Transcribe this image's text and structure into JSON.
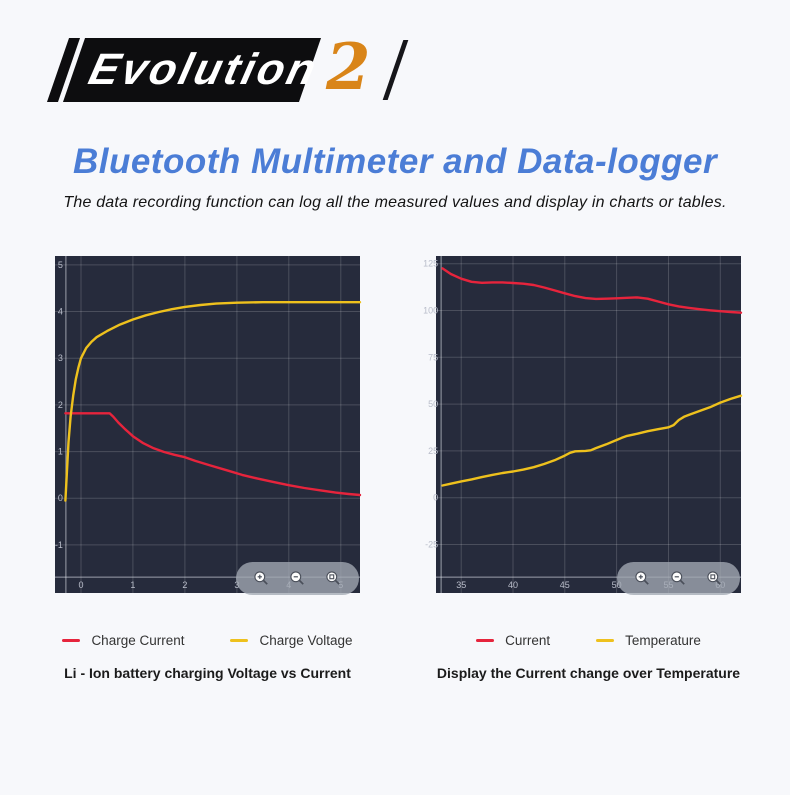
{
  "header": {
    "badge_text": "Evolution",
    "badge_number": "2"
  },
  "title": "Bluetooth Multimeter and Data-logger",
  "subtitle": "The data recording function can log all the measured values and display in charts or tables.",
  "colors": {
    "accent_blue": "#4b7dd6",
    "accent_orange": "#d98519",
    "chart_bg": "#262b3c",
    "series_red": "#e6243c",
    "series_yellow": "#eec11d"
  },
  "toolbar": {
    "icons": [
      "zoom-in-icon",
      "zoom-out-icon",
      "zoom-reset-icon"
    ]
  },
  "chart_data": [
    {
      "type": "line",
      "title": "Li - Ion battery charging Voltage vs Current",
      "x_range": [
        -0.5,
        5.37
      ],
      "y_range": [
        -2.03,
        5.19
      ],
      "y_axis_x": -0.29,
      "x_axis_y": -1.69,
      "x_ticks": {
        "values": [
          0,
          1,
          2,
          3,
          4,
          5
        ],
        "labels": [
          "0",
          "1",
          "2",
          "3",
          "4",
          "5"
        ]
      },
      "y_ticks": {
        "values": [
          5,
          4,
          3,
          2,
          1,
          0,
          -1
        ],
        "labels": [
          "5",
          "4",
          "3",
          "2",
          "1",
          "0",
          "-1"
        ]
      },
      "grid": true,
      "legend_position": "bottom",
      "series": [
        {
          "name": "Charge Current",
          "color": "#e6243c",
          "points": [
            [
              -0.3,
              1.82
            ],
            [
              0,
              1.82
            ],
            [
              0.55,
              1.82
            ],
            [
              0.62,
              1.75
            ],
            [
              0.72,
              1.62
            ],
            [
              0.85,
              1.48
            ],
            [
              1.0,
              1.33
            ],
            [
              1.2,
              1.18
            ],
            [
              1.4,
              1.07
            ],
            [
              1.6,
              0.99
            ],
            [
              1.8,
              0.93
            ],
            [
              2.0,
              0.88
            ],
            [
              2.2,
              0.8
            ],
            [
              2.5,
              0.7
            ],
            [
              2.8,
              0.6
            ],
            [
              3.1,
              0.5
            ],
            [
              3.4,
              0.42
            ],
            [
              3.7,
              0.35
            ],
            [
              4.0,
              0.28
            ],
            [
              4.3,
              0.22
            ],
            [
              4.6,
              0.17
            ],
            [
              4.9,
              0.12
            ],
            [
              5.15,
              0.09
            ],
            [
              5.37,
              0.07
            ]
          ]
        },
        {
          "name": "Charge Voltage",
          "color": "#eec11d",
          "points": [
            [
              -0.3,
              -0.05
            ],
            [
              -0.27,
              0.6
            ],
            [
              -0.24,
              1.2
            ],
            [
              -0.2,
              1.75
            ],
            [
              -0.15,
              2.2
            ],
            [
              -0.1,
              2.55
            ],
            [
              -0.05,
              2.8
            ],
            [
              0,
              3.0
            ],
            [
              0.1,
              3.22
            ],
            [
              0.2,
              3.35
            ],
            [
              0.3,
              3.45
            ],
            [
              0.5,
              3.58
            ],
            [
              0.75,
              3.72
            ],
            [
              1.0,
              3.83
            ],
            [
              1.25,
              3.92
            ],
            [
              1.5,
              3.99
            ],
            [
              1.75,
              4.05
            ],
            [
              2.0,
              4.1
            ],
            [
              2.3,
              4.14
            ],
            [
              2.6,
              4.17
            ],
            [
              3.0,
              4.19
            ],
            [
              3.5,
              4.2
            ],
            [
              4.0,
              4.2
            ],
            [
              4.5,
              4.2
            ],
            [
              5.0,
              4.2
            ],
            [
              5.37,
              4.2
            ]
          ]
        }
      ]
    },
    {
      "type": "line",
      "title": "Display the Current change over Temperature",
      "x_range": [
        32.57,
        62.0
      ],
      "y_range": [
        -50.9,
        129.1
      ],
      "y_axis_x": 33.06,
      "x_axis_y": -42.4,
      "x_ticks": {
        "values": [
          35,
          40,
          45,
          50,
          55,
          60
        ],
        "labels": [
          "35",
          "40",
          "45",
          "50",
          "55",
          "60"
        ]
      },
      "y_ticks": {
        "values": [
          125,
          100,
          75,
          50,
          25,
          0,
          -25
        ],
        "labels": [
          "125",
          "100",
          "75",
          "50",
          "25",
          "0",
          "-25"
        ]
      },
      "grid": true,
      "legend_position": "bottom",
      "series": [
        {
          "name": "Current",
          "color": "#e6243c",
          "points": [
            [
              33.2,
              122.5
            ],
            [
              34,
              119.5
            ],
            [
              35,
              117
            ],
            [
              36,
              115.3
            ],
            [
              37,
              114.8
            ],
            [
              38,
              115
            ],
            [
              39,
              115
            ],
            [
              40,
              114.7
            ],
            [
              41,
              114.3
            ],
            [
              42,
              113.6
            ],
            [
              43,
              112.3
            ],
            [
              44,
              110.7
            ],
            [
              45,
              109.2
            ],
            [
              46,
              107.7
            ],
            [
              47,
              106.6
            ],
            [
              48,
              106.2
            ],
            [
              49,
              106.3
            ],
            [
              50,
              106.5
            ],
            [
              51,
              106.8
            ],
            [
              52,
              107
            ],
            [
              53,
              106.3
            ],
            [
              54,
              104.8
            ],
            [
              55,
              103.3
            ],
            [
              56,
              102.2
            ],
            [
              57,
              101.4
            ],
            [
              58,
              100.7
            ],
            [
              59,
              100.1
            ],
            [
              60,
              99.6
            ],
            [
              61,
              99.2
            ],
            [
              62,
              98.8
            ]
          ]
        },
        {
          "name": "Temperature",
          "color": "#eec11d",
          "points": [
            [
              33.2,
              6.5
            ],
            [
              34,
              7.5
            ],
            [
              35,
              8.7
            ],
            [
              36,
              9.8
            ],
            [
              37,
              11
            ],
            [
              38,
              12.2
            ],
            [
              39,
              13.2
            ],
            [
              40,
              14
            ],
            [
              41,
              15
            ],
            [
              42,
              16.3
            ],
            [
              43,
              18
            ],
            [
              44,
              20
            ],
            [
              45,
              22.5
            ],
            [
              45.5,
              24
            ],
            [
              46,
              24.8
            ],
            [
              47,
              25
            ],
            [
              47.5,
              25.3
            ],
            [
              48,
              26.5
            ],
            [
              49,
              28.5
            ],
            [
              50,
              30.8
            ],
            [
              50.5,
              32
            ],
            [
              51,
              33
            ],
            [
              52,
              34.2
            ],
            [
              53,
              35.5
            ],
            [
              54,
              36.6
            ],
            [
              55,
              37.6
            ],
            [
              55.5,
              38.8
            ],
            [
              56,
              41.5
            ],
            [
              56.5,
              43.2
            ],
            [
              57,
              44.3
            ],
            [
              58,
              46.3
            ],
            [
              59,
              48.3
            ],
            [
              60,
              50.8
            ],
            [
              61,
              52.8
            ],
            [
              62,
              54.5
            ]
          ]
        }
      ]
    }
  ]
}
